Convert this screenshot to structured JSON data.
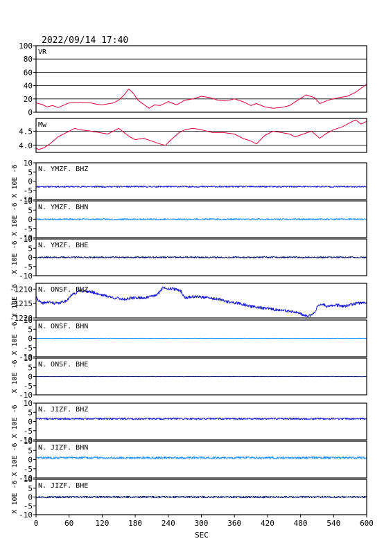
{
  "header": {
    "timestamp": "2022/09/14  17:40"
  },
  "chart_data": {
    "type": "line",
    "x": {
      "label": "SEC",
      "range": [
        0,
        600
      ],
      "ticks": [
        "0",
        "60",
        "120",
        "180",
        "240",
        "300",
        "360",
        "420",
        "480",
        "540",
        "600"
      ]
    },
    "panels": [
      {
        "id": "vr",
        "label": "VR",
        "ylim": [
          0,
          100
        ],
        "yticks": [
          "0",
          "20",
          "40",
          "60",
          "80",
          "100"
        ],
        "grid": true,
        "color": "#e0003c",
        "points": [
          [
            0,
            14
          ],
          [
            10,
            12
          ],
          [
            20,
            8
          ],
          [
            30,
            10
          ],
          [
            40,
            7
          ],
          [
            60,
            14
          ],
          [
            80,
            15
          ],
          [
            100,
            14
          ],
          [
            110,
            12
          ],
          [
            120,
            11
          ],
          [
            140,
            14
          ],
          [
            150,
            18
          ],
          [
            160,
            26
          ],
          [
            168,
            35
          ],
          [
            175,
            30
          ],
          [
            185,
            18
          ],
          [
            195,
            12
          ],
          [
            205,
            6
          ],
          [
            215,
            11
          ],
          [
            225,
            10
          ],
          [
            240,
            16
          ],
          [
            255,
            11
          ],
          [
            270,
            18
          ],
          [
            285,
            20
          ],
          [
            300,
            24
          ],
          [
            315,
            22
          ],
          [
            330,
            18
          ],
          [
            345,
            17
          ],
          [
            360,
            20
          ],
          [
            375,
            16
          ],
          [
            390,
            10
          ],
          [
            400,
            13
          ],
          [
            415,
            8
          ],
          [
            430,
            6
          ],
          [
            445,
            7
          ],
          [
            460,
            10
          ],
          [
            475,
            18
          ],
          [
            490,
            26
          ],
          [
            505,
            22
          ],
          [
            515,
            13
          ],
          [
            530,
            18
          ],
          [
            550,
            22
          ],
          [
            565,
            24
          ],
          [
            580,
            30
          ],
          [
            590,
            36
          ],
          [
            600,
            42
          ]
        ]
      },
      {
        "id": "mw",
        "label": "Mw",
        "ylim": [
          3.75,
          4.95
        ],
        "yticks": [
          "4.0",
          "4.5"
        ],
        "grid": true,
        "color": "#e0003c",
        "points": [
          [
            0,
            3.9
          ],
          [
            5,
            3.85
          ],
          [
            15,
            3.92
          ],
          [
            25,
            4.05
          ],
          [
            40,
            4.3
          ],
          [
            55,
            4.45
          ],
          [
            70,
            4.6
          ],
          [
            80,
            4.55
          ],
          [
            100,
            4.5
          ],
          [
            115,
            4.45
          ],
          [
            130,
            4.4
          ],
          [
            140,
            4.5
          ],
          [
            150,
            4.6
          ],
          [
            160,
            4.45
          ],
          [
            170,
            4.3
          ],
          [
            180,
            4.2
          ],
          [
            195,
            4.25
          ],
          [
            210,
            4.15
          ],
          [
            225,
            4.05
          ],
          [
            235,
            4.0
          ],
          [
            245,
            4.2
          ],
          [
            260,
            4.45
          ],
          [
            270,
            4.55
          ],
          [
            285,
            4.6
          ],
          [
            300,
            4.55
          ],
          [
            320,
            4.45
          ],
          [
            340,
            4.45
          ],
          [
            360,
            4.4
          ],
          [
            375,
            4.25
          ],
          [
            390,
            4.15
          ],
          [
            400,
            4.05
          ],
          [
            415,
            4.35
          ],
          [
            430,
            4.5
          ],
          [
            445,
            4.45
          ],
          [
            460,
            4.4
          ],
          [
            470,
            4.3
          ],
          [
            485,
            4.4
          ],
          [
            500,
            4.5
          ],
          [
            515,
            4.25
          ],
          [
            525,
            4.4
          ],
          [
            540,
            4.55
          ],
          [
            555,
            4.65
          ],
          [
            570,
            4.8
          ],
          [
            580,
            4.9
          ],
          [
            590,
            4.75
          ],
          [
            600,
            4.85
          ]
        ]
      },
      {
        "id": "ymzf-bhz",
        "label": "N. YMZF. BHZ",
        "ylim": [
          -10,
          10
        ],
        "yticks": [
          "-10",
          "-5",
          "0",
          "5",
          "10"
        ],
        "color": "#1e1ed6",
        "trace": {
          "type": "noise",
          "mean": -3,
          "amp": 0.4,
          "seed": 11
        }
      },
      {
        "id": "ymzf-bhn",
        "label": "N. YMZF. BHN",
        "ylim": [
          -10,
          10
        ],
        "yticks": [
          "-10",
          "-5",
          "0",
          "5",
          "10"
        ],
        "color": "#1e90ff",
        "trace": {
          "type": "noise",
          "mean": 0,
          "amp": 0.4,
          "seed": 23
        }
      },
      {
        "id": "ymzf-bhe",
        "label": "N. YMZF. BHE",
        "ylim": [
          -10,
          10
        ],
        "yticks": [
          "-10",
          "-5",
          "0",
          "5",
          "10"
        ],
        "color": "#0c1a6e",
        "trace": {
          "type": "noise",
          "mean": 0,
          "amp": 0.4,
          "seed": 37
        }
      },
      {
        "id": "onsf-bhz",
        "label": "N. ONSF. BHZ",
        "ylim": [
          -1220,
          -1208
        ],
        "yticks": [
          "-1220",
          "-1215",
          "-1210"
        ],
        "color": "#1e1ed6",
        "trace": {
          "type": "wander",
          "amp": 0.5,
          "seed": 41,
          "points": [
            [
              0,
              -1213
            ],
            [
              10,
              -1215
            ],
            [
              20,
              -1214.5
            ],
            [
              40,
              -1215
            ],
            [
              55,
              -1214
            ],
            [
              65,
              -1212
            ],
            [
              80,
              -1210.5
            ],
            [
              100,
              -1211
            ],
            [
              120,
              -1212
            ],
            [
              140,
              -1213
            ],
            [
              160,
              -1213.5
            ],
            [
              180,
              -1213
            ],
            [
              200,
              -1213
            ],
            [
              220,
              -1212
            ],
            [
              230,
              -1209.5
            ],
            [
              250,
              -1210
            ],
            [
              262,
              -1210.5
            ],
            [
              270,
              -1213
            ],
            [
              290,
              -1212.5
            ],
            [
              310,
              -1213
            ],
            [
              330,
              -1213.5
            ],
            [
              350,
              -1214.5
            ],
            [
              370,
              -1215
            ],
            [
              390,
              -1216
            ],
            [
              410,
              -1216.5
            ],
            [
              430,
              -1217
            ],
            [
              450,
              -1217.5
            ],
            [
              470,
              -1218
            ],
            [
              485,
              -1219
            ],
            [
              495,
              -1219.5
            ],
            [
              505,
              -1218
            ],
            [
              515,
              -1215
            ],
            [
              530,
              -1216
            ],
            [
              545,
              -1215.5
            ],
            [
              560,
              -1216
            ],
            [
              580,
              -1215
            ],
            [
              600,
              -1214.5
            ]
          ]
        }
      },
      {
        "id": "onsf-bhn",
        "label": "N. ONSF. BHN",
        "ylim": [
          -10,
          10
        ],
        "yticks": [
          "-10",
          "-5",
          "0",
          "5",
          "10"
        ],
        "color": "#1e90ff",
        "trace": {
          "type": "noise",
          "mean": 0,
          "amp": 0.08,
          "seed": 53
        }
      },
      {
        "id": "onsf-bhe",
        "label": "N. ONSF. BHE",
        "ylim": [
          -10,
          10
        ],
        "yticks": [
          "-10",
          "-5",
          "0",
          "5",
          "10"
        ],
        "color": "#0c1a6e",
        "trace": {
          "type": "noise",
          "mean": 0,
          "amp": 0.08,
          "seed": 67
        }
      },
      {
        "id": "jizf-bhz",
        "label": "N. JIZF. BHZ",
        "ylim": [
          -10,
          10
        ],
        "yticks": [
          "-10",
          "-5",
          "0",
          "5",
          "10"
        ],
        "color": "#1e1ed6",
        "trace": {
          "type": "noise",
          "mean": 1.5,
          "amp": 0.5,
          "seed": 71
        }
      },
      {
        "id": "jizf-bhn",
        "label": "N. JIZF. BHN",
        "ylim": [
          -10,
          10
        ],
        "yticks": [
          "-10",
          "-5",
          "0",
          "5",
          "10"
        ],
        "color": "#1e90ff",
        "trace": {
          "type": "noise",
          "mean": 1,
          "amp": 0.6,
          "seed": 83
        }
      },
      {
        "id": "jizf-bhe",
        "label": "N. JIZF. BHE",
        "ylim": [
          -10,
          10
        ],
        "yticks": [
          "-10",
          "-5",
          "0",
          "5",
          "10"
        ],
        "color": "#0c1a6e",
        "trace": {
          "type": "noise",
          "mean": 0,
          "amp": 0.5,
          "seed": 97
        }
      }
    ],
    "unit_labels": [
      "X 10E -6",
      "X 10E -6",
      "X 10E -6",
      "X 10E -6",
      "X 10E -6",
      "X 10E -6",
      "X 10E -6",
      "X 10E -6",
      "X 10E -6"
    ]
  }
}
